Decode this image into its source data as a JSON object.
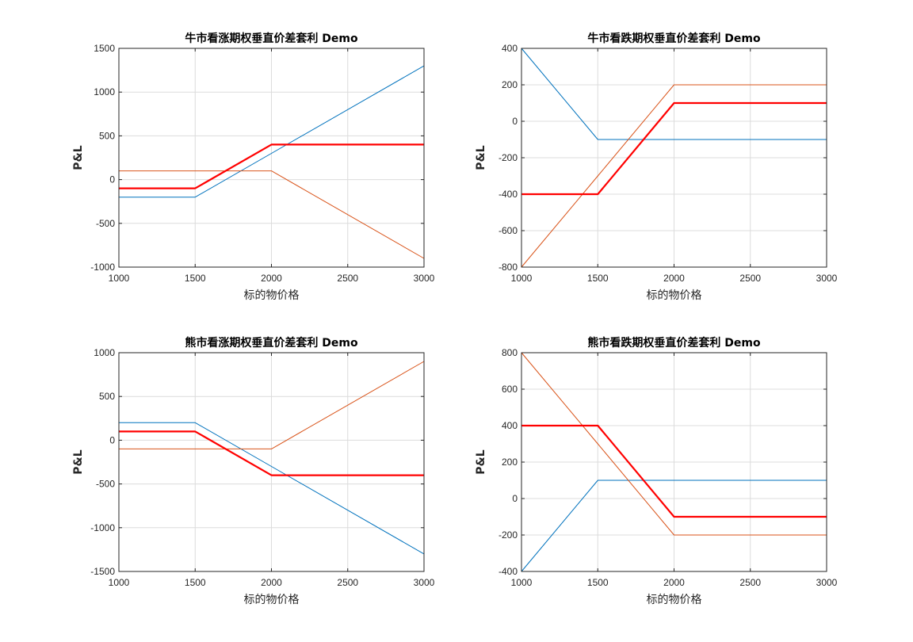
{
  "colors": {
    "grid": "#dcdcdc",
    "axis": "#262626",
    "series1": "#0072BD",
    "series2": "#D95319",
    "net": "#FF0000"
  },
  "chart_data": [
    {
      "type": "line",
      "title": "牛市看涨期权垂直价差套利 Demo",
      "xlabel": "标的物价格",
      "ylabel": "P&L",
      "xlim": [
        1000,
        3000
      ],
      "ylim": [
        -1000,
        1500
      ],
      "xticks": [
        "1000",
        "1500",
        "2000",
        "2500",
        "3000"
      ],
      "yticks": [
        "-1000",
        "-500",
        "0",
        "500",
        "1000",
        "1500"
      ],
      "grid": true,
      "x": [
        1000,
        1500,
        2000,
        3000
      ],
      "series": [
        {
          "values": [
            -200,
            -200,
            300,
            1300
          ],
          "color": "#0072BD"
        },
        {
          "values": [
            100,
            100,
            100,
            -900
          ],
          "color": "#D95319"
        },
        {
          "values": [
            -100,
            -100,
            400,
            400
          ],
          "color": "#FF0000",
          "bold": true
        }
      ]
    },
    {
      "type": "line",
      "title": "牛市看跌期权垂直价差套利 Demo",
      "xlabel": "标的物价格",
      "ylabel": "P&L",
      "xlim": [
        1000,
        3000
      ],
      "ylim": [
        -800,
        400
      ],
      "xticks": [
        "1000",
        "1500",
        "2000",
        "2500",
        "3000"
      ],
      "yticks": [
        "-800",
        "-600",
        "-400",
        "-200",
        "0",
        "200",
        "400"
      ],
      "grid": true,
      "x": [
        1000,
        1500,
        2000,
        3000
      ],
      "series": [
        {
          "values": [
            400,
            -100,
            -100,
            -100
          ],
          "color": "#0072BD"
        },
        {
          "values": [
            -800,
            -300,
            200,
            200
          ],
          "color": "#D95319"
        },
        {
          "values": [
            -400,
            -400,
            100,
            100
          ],
          "color": "#FF0000",
          "bold": true
        }
      ]
    },
    {
      "type": "line",
      "title": "熊市看涨期权垂直价差套利 Demo",
      "xlabel": "标的物价格",
      "ylabel": "P&L",
      "xlim": [
        1000,
        3000
      ],
      "ylim": [
        -1500,
        1000
      ],
      "xticks": [
        "1000",
        "1500",
        "2000",
        "2500",
        "3000"
      ],
      "yticks": [
        "-1500",
        "-1000",
        "-500",
        "0",
        "500",
        "1000"
      ],
      "grid": true,
      "x": [
        1000,
        1500,
        2000,
        3000
      ],
      "series": [
        {
          "values": [
            200,
            200,
            -300,
            -1300
          ],
          "color": "#0072BD"
        },
        {
          "values": [
            -100,
            -100,
            -100,
            900
          ],
          "color": "#D95319"
        },
        {
          "values": [
            100,
            100,
            -400,
            -400
          ],
          "color": "#FF0000",
          "bold": true
        }
      ]
    },
    {
      "type": "line",
      "title": "熊市看跌期权垂直价差套利 Demo",
      "xlabel": "标的物价格",
      "ylabel": "P&L",
      "xlim": [
        1000,
        3000
      ],
      "ylim": [
        -400,
        800
      ],
      "xticks": [
        "1000",
        "1500",
        "2000",
        "2500",
        "3000"
      ],
      "yticks": [
        "-400",
        "-200",
        "0",
        "200",
        "400",
        "600",
        "800"
      ],
      "grid": true,
      "x": [
        1000,
        1500,
        2000,
        3000
      ],
      "series": [
        {
          "values": [
            -400,
            100,
            100,
            100
          ],
          "color": "#0072BD"
        },
        {
          "values": [
            800,
            300,
            -200,
            -200
          ],
          "color": "#D95319"
        },
        {
          "values": [
            400,
            400,
            -100,
            -100
          ],
          "color": "#FF0000",
          "bold": true
        }
      ]
    }
  ]
}
